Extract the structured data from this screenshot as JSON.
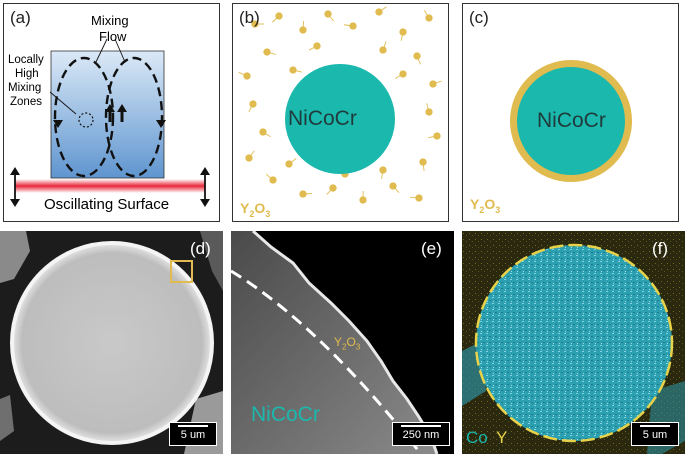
{
  "colors": {
    "teal": "#1ab8ad",
    "gold": "#e0bb4f",
    "beam": "#e8283a",
    "flowbox": "#a9c9ea"
  },
  "panel_a": {
    "label": "(a)",
    "mixing_flow_line1": "Mixing",
    "mixing_flow_line2": "Flow",
    "zone_line1": "Locally",
    "zone_line2": "High",
    "zone_line3": "Mixing",
    "zone_line4": "Zones",
    "surface": "Oscillating Surface"
  },
  "panel_b": {
    "label": "(b)",
    "core": "NiCoCr",
    "oxide": "Y",
    "oxide_sub1": "2",
    "oxide_mid": "O",
    "oxide_sub2": "3"
  },
  "panel_c": {
    "label": "(c)",
    "core": "NiCoCr",
    "oxide": "Y",
    "oxide_sub1": "2",
    "oxide_mid": "O",
    "oxide_sub2": "3"
  },
  "panel_d": {
    "label": "(d)",
    "scalebar": "5 um"
  },
  "panel_e": {
    "label": "(e)",
    "material": "NiCoCr",
    "oxide": "Y",
    "oxide_sub1": "2",
    "oxide_mid": "O",
    "oxide_sub2": "3",
    "scalebar": "250 nm"
  },
  "panel_f": {
    "label": "(f)",
    "legend_co": "Co",
    "legend_y": "Y",
    "scalebar": "5 um"
  }
}
